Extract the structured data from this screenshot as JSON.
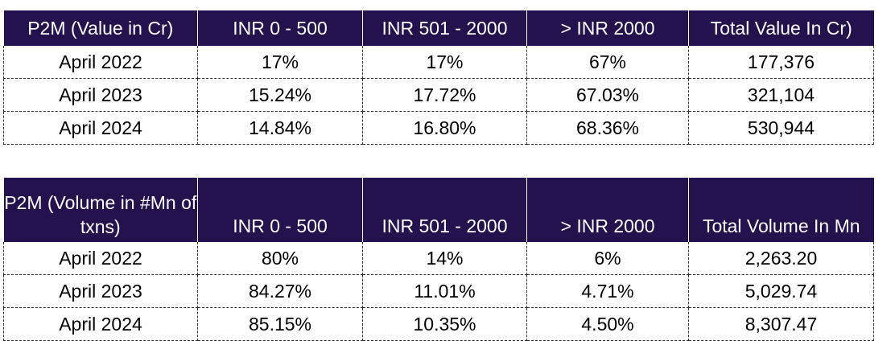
{
  "value_table": {
    "headers": [
      "P2M (Value in Cr)",
      "INR 0 - 500",
      "INR 501 - 2000",
      "> INR 2000",
      "Total Value In Cr)"
    ],
    "rows": [
      [
        "April 2022",
        "17%",
        "17%",
        "67%",
        "177,376"
      ],
      [
        "April 2023",
        "15.24%",
        "17.72%",
        "67.03%",
        "321,104"
      ],
      [
        "April 2024",
        "14.84%",
        "16.80%",
        "68.36%",
        "530,944"
      ]
    ]
  },
  "volume_table": {
    "headers": [
      "P2M (Volume in #Mn of txns)",
      "INR 0 - 500",
      "INR 501 - 2000",
      "> INR 2000",
      "Total Volume In Mn"
    ],
    "rows": [
      [
        "April 2022",
        "80%",
        "14%",
        "6%",
        "2,263.20"
      ],
      [
        "April 2023",
        "84.27%",
        "11.01%",
        "4.71%",
        "5,029.74"
      ],
      [
        "April 2024",
        "85.15%",
        "10.35%",
        "4.50%",
        "8,307.47"
      ]
    ]
  },
  "colors": {
    "header_background": "#24124f",
    "header_text": "#ffffff",
    "cell_border": "#333333"
  }
}
